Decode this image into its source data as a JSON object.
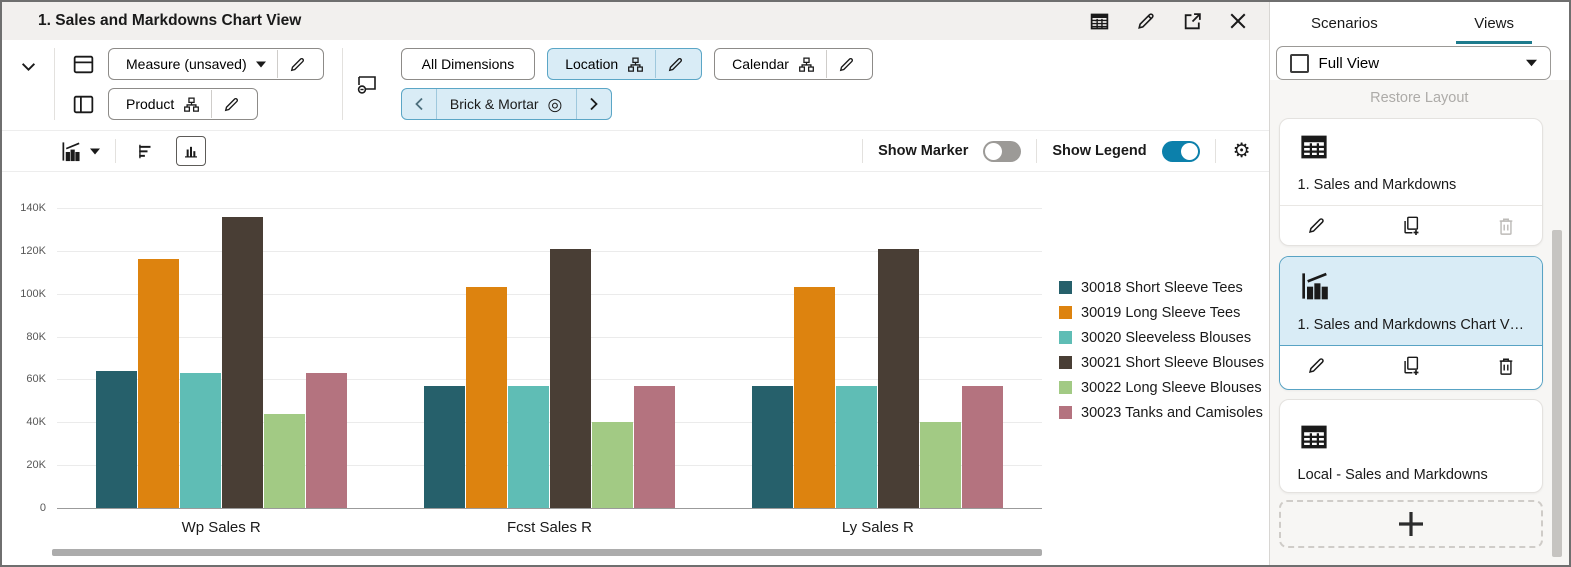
{
  "titlebar": {
    "title": "1. Sales and Markdowns Chart View",
    "icons": [
      "table-view-icon",
      "edit-icon",
      "open-in-new-icon",
      "close-icon"
    ]
  },
  "toolbar": {
    "measure_button": "Measure (unsaved)",
    "product_button": "Product",
    "all_dimensions_button": "All Dimensions",
    "location_button": "Location",
    "calendar_button": "Calendar",
    "slice_nav": "Brick & Mortar"
  },
  "chart_toolbar": {
    "show_marker_label": "Show Marker",
    "show_marker_on": false,
    "show_legend_label": "Show Legend",
    "show_legend_on": true
  },
  "chart_data": {
    "type": "bar",
    "categories": [
      "Wp Sales R",
      "Fcst Sales R",
      "Ly Sales R"
    ],
    "series": [
      {
        "name": "30018 Short Sleeve Tees",
        "color": "#26606b",
        "values": [
          64000,
          57000,
          57000
        ]
      },
      {
        "name": "30019 Long Sleeve Tees",
        "color": "#dd830f",
        "values": [
          116000,
          103000,
          103000
        ]
      },
      {
        "name": "30020 Sleeveless Blouses",
        "color": "#5fbdb5",
        "values": [
          63000,
          57000,
          57000
        ]
      },
      {
        "name": "30021 Short Sleeve Blouses",
        "color": "#493e35",
        "values": [
          136000,
          121000,
          121000
        ]
      },
      {
        "name": "30022 Long Sleeve Blouses",
        "color": "#a2ca84",
        "values": [
          44000,
          40000,
          40000
        ]
      },
      {
        "name": "30023 Tanks and Camisoles",
        "color": "#b4737f",
        "values": [
          63000,
          57000,
          57000
        ]
      }
    ],
    "ylim": [
      0,
      140000
    ],
    "ytick_step": 20000,
    "ytick_labels": [
      "140K",
      "120K",
      "100K",
      "80K",
      "60K",
      "40K",
      "20K",
      "0"
    ],
    "grid": true,
    "legend_position": "right"
  },
  "sidebar": {
    "tabs": [
      {
        "label": "Scenarios",
        "active": false
      },
      {
        "label": "Views",
        "active": true
      }
    ],
    "full_view_label": "Full View",
    "full_view_checked": false,
    "restore_layout_label": "Restore Layout",
    "views": [
      {
        "label": "1. Sales and Markdowns",
        "icon": "table-view-icon",
        "selected": false,
        "delete_enabled": false
      },
      {
        "label": "1. Sales and Markdowns Chart V…",
        "icon": "bar-chart-icon",
        "selected": true,
        "delete_enabled": true
      },
      {
        "label": "Local - Sales and Markdowns",
        "icon": "table-view-icon",
        "selected": false,
        "delete_enabled": true
      }
    ]
  },
  "icon_glyphs": {
    "gear-icon": "⚙",
    "bullseye-icon": "◎"
  },
  "colors": {
    "toggle_on": "#0c80ab",
    "tab_underline": "#1d7b8d",
    "selection_bg": "#d9ecf6",
    "selection_border": "#58a3c4",
    "titlebar_bg": "#f2f0ee"
  }
}
